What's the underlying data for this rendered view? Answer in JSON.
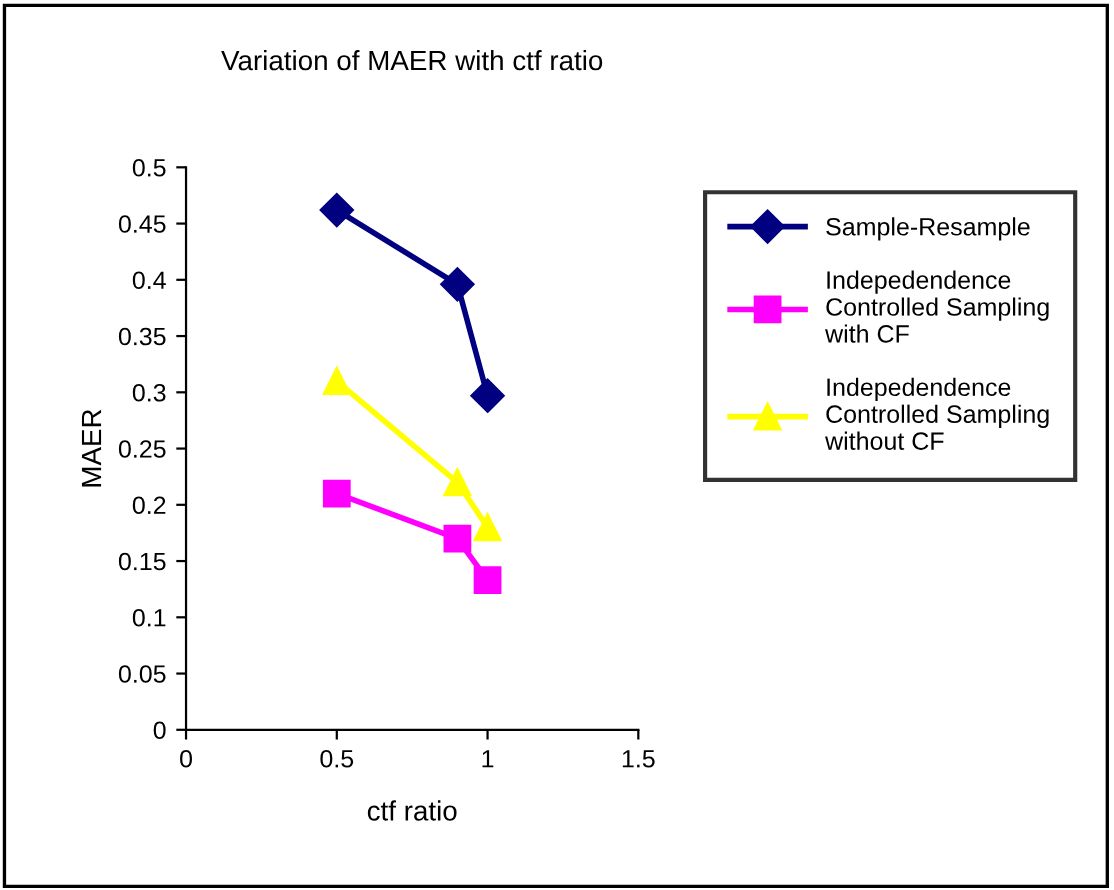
{
  "chart_data": {
    "type": "line",
    "title": "Variation of MAER with ctf ratio",
    "xlabel": "ctf ratio",
    "ylabel": "MAER",
    "x": [
      0.5,
      0.9,
      1.0
    ],
    "series": [
      {
        "name": "Sample-Resample",
        "color": "#000080",
        "marker": "diamond",
        "values": [
          0.462,
          0.396,
          0.297
        ]
      },
      {
        "name": "Indepedendence\nControlled Sampling\nwith CF",
        "color": "#ff00ff",
        "marker": "square",
        "values": [
          0.21,
          0.17,
          0.133
        ]
      },
      {
        "name": "Indepedendence\nControlled Sampling\nwithout CF",
        "color": "#ffff00",
        "marker": "triangle",
        "values": [
          0.31,
          0.22,
          0.18
        ]
      }
    ],
    "xlim": [
      0,
      1.5
    ],
    "xticks": [
      0,
      0.5,
      1,
      1.5
    ],
    "ylim": [
      0,
      0.5
    ],
    "yticks": [
      0,
      0.05,
      0.1,
      0.15,
      0.2,
      0.25,
      0.3,
      0.35,
      0.4,
      0.45,
      0.5
    ],
    "grid": false,
    "legend": "right"
  }
}
